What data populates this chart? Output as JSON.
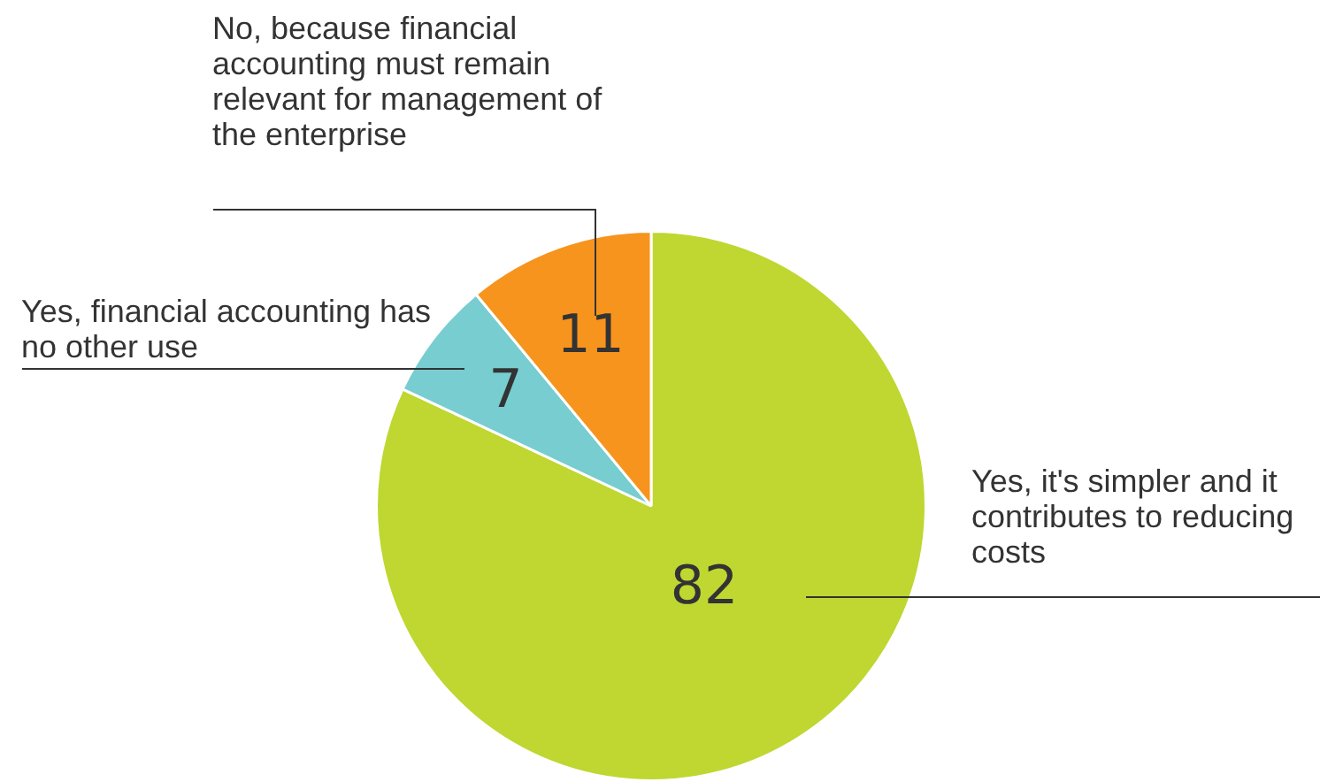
{
  "chart_data": {
    "type": "pie",
    "categories": [
      "Yes, it's simpler and it contributes to reducing costs",
      "Yes, financial accounting has no other use",
      "No, because financial accounting must remain relevant for management of the enterprise"
    ],
    "values": [
      82,
      7,
      11
    ],
    "colors": [
      "#bfd730",
      "#77cdd0",
      "#f7941d"
    ],
    "data_labels": true,
    "legend": false
  }
}
